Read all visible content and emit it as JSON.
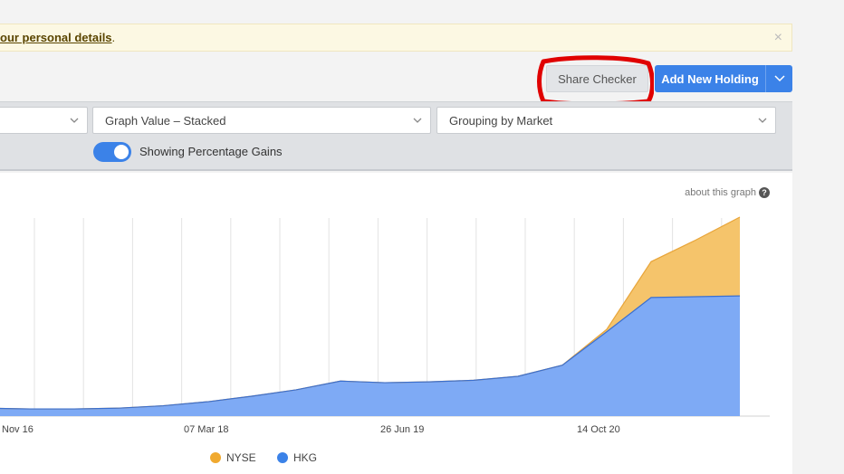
{
  "notice": {
    "link": "our personal details",
    "suffix": ".",
    "close": "×"
  },
  "toolbar": {
    "share_checker": "Share Checker",
    "add_holding": "Add New Holding"
  },
  "controls": {
    "select1": "",
    "graph_value": "Graph Value – Stacked",
    "grouping": "Grouping by Market",
    "toggle_label": "Showing Percentage Gains",
    "toggle_on": true
  },
  "panel": {
    "about": "about this graph",
    "help": "?"
  },
  "chart_data": {
    "type": "area",
    "stacked": true,
    "x_tick_labels": [
      "Nov 16",
      "07 Mar 18",
      "26 Jun 19",
      "14 Oct 20"
    ],
    "series": [
      {
        "name": "HKG",
        "color": "#7eaaf5",
        "values": [
          1,
          0.9,
          0.9,
          1.0,
          1.3,
          1.8,
          2.5,
          3.3,
          4.4,
          4.2,
          4.3,
          4.5,
          5.0,
          6.4,
          10.6,
          14.9,
          15.0,
          15.1
        ]
      },
      {
        "name": "NYSE",
        "color": "#f5c46b",
        "values": [
          0,
          0,
          0,
          0,
          0,
          0,
          0,
          0,
          0,
          0,
          0,
          0,
          0,
          0,
          0.3,
          4.5,
          7.1,
          9.9
        ]
      }
    ],
    "grid": true,
    "legend": "bottom"
  }
}
